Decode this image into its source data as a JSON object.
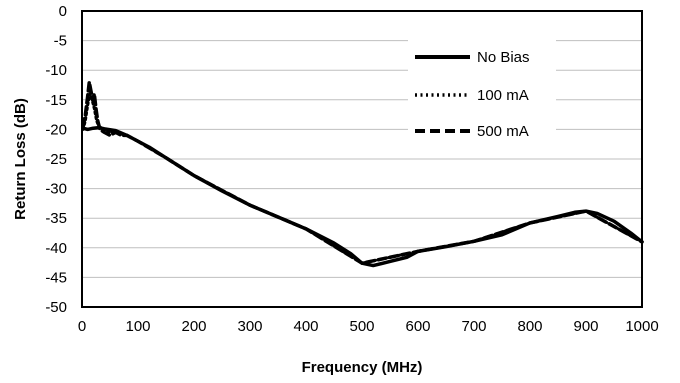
{
  "chart_data": {
    "type": "line",
    "xlabel": "Frequency (MHz)",
    "ylabel": "Return Loss (dB)",
    "xlim": [
      0,
      1000
    ],
    "ylim": [
      -50,
      0
    ],
    "x_ticks": [
      "0",
      "100",
      "200",
      "300",
      "400",
      "500",
      "600",
      "700",
      "800",
      "900",
      "1000"
    ],
    "y_ticks": [
      "0",
      "-5",
      "-10",
      "-15",
      "-20",
      "-25",
      "-30",
      "-35",
      "-40",
      "-45",
      "-50"
    ],
    "grid": "horizontal",
    "legend_position": "top-right",
    "series": [
      {
        "name": "No Bias",
        "style": "solid",
        "x": [
          2,
          10,
          20,
          30,
          40,
          60,
          80,
          100,
          120,
          150,
          200,
          250,
          300,
          350,
          400,
          450,
          480,
          500,
          520,
          550,
          580,
          600,
          650,
          700,
          750,
          800,
          850,
          880,
          900,
          920,
          950,
          980,
          1000
        ],
        "y": [
          -19.8,
          -20.0,
          -19.8,
          -19.7,
          -19.9,
          -20.2,
          -21.0,
          -22.0,
          -23.0,
          -24.8,
          -27.8,
          -30.4,
          -32.8,
          -34.8,
          -36.8,
          -39.2,
          -41.0,
          -42.6,
          -43.0,
          -42.3,
          -41.6,
          -40.6,
          -39.8,
          -38.9,
          -37.8,
          -35.8,
          -34.7,
          -34.0,
          -33.8,
          -34.2,
          -35.5,
          -37.5,
          -39.0
        ]
      },
      {
        "name": "100 mA",
        "style": "dotted",
        "x": [
          2,
          6,
          10,
          14,
          18,
          22,
          26,
          30,
          40,
          50,
          60,
          70,
          80,
          100,
          150,
          200,
          300,
          400,
          500,
          600,
          700,
          800,
          900,
          1000
        ],
        "y": [
          -20.0,
          -18.5,
          -16.0,
          -14.0,
          -15.0,
          -16.5,
          -18.5,
          -19.5,
          -20.0,
          -20.5,
          -20.5,
          -20.8,
          -21.0,
          -22.0,
          -24.8,
          -27.8,
          -32.8,
          -36.8,
          -42.6,
          -40.6,
          -38.9,
          -35.8,
          -33.8,
          -39.0
        ]
      },
      {
        "name": "500 mA",
        "style": "dashed",
        "x": [
          2,
          6,
          10,
          13,
          16,
          19,
          22,
          25,
          28,
          32,
          40,
          50,
          60,
          70,
          80,
          100,
          150,
          200,
          300,
          400,
          500,
          600,
          700,
          800,
          900,
          1000
        ],
        "y": [
          -19.5,
          -17.5,
          -14.5,
          -12.0,
          -13.5,
          -15.0,
          -14.0,
          -16.5,
          -18.5,
          -20.0,
          -20.5,
          -21.0,
          -20.5,
          -21.0,
          -21.0,
          -22.0,
          -24.8,
          -27.8,
          -32.8,
          -36.8,
          -42.6,
          -40.6,
          -38.9,
          -35.8,
          -33.8,
          -39.0
        ]
      }
    ]
  }
}
